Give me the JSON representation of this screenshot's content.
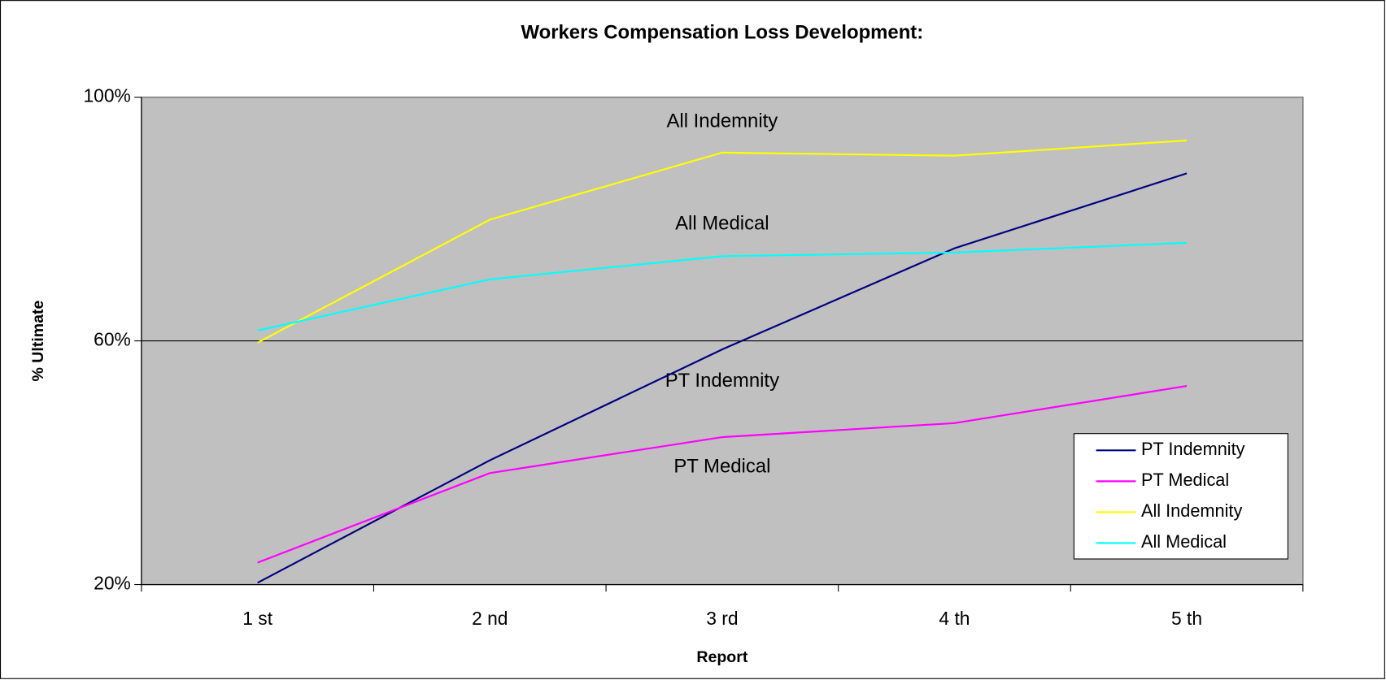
{
  "chart_data": {
    "type": "line",
    "title": "Workers Compensation Loss Development:",
    "x_label": "Report",
    "y_label": "% Ultimate",
    "categories": [
      "1 st",
      "2 nd",
      "3 rd",
      "4 th",
      "5 th"
    ],
    "series": [
      {
        "name": "PT Indemnity",
        "color": "#000080",
        "values": [
          20.3,
          40.4,
          58.6,
          75.2,
          87.5
        ]
      },
      {
        "name": "PT Medical",
        "color": "#ff00ff",
        "values": [
          23.6,
          38.3,
          44.2,
          46.5,
          52.6
        ]
      },
      {
        "name": "All Indemnity",
        "color": "#ffff00",
        "values": [
          59.7,
          79.9,
          90.9,
          90.4,
          92.9
        ]
      },
      {
        "name": "All Medical",
        "color": "#00ffff",
        "values": [
          61.7,
          70.1,
          73.9,
          74.5,
          76.1
        ]
      }
    ],
    "annotations": [
      "All Indemnity",
      "All Medical",
      "PT Indemnity",
      "PT Medical"
    ],
    "ylim": [
      20,
      100
    ],
    "yticks": [
      {
        "value": 20,
        "label": "20%"
      },
      {
        "value": 60,
        "label": "60%"
      },
      {
        "value": 100,
        "label": "100%"
      }
    ],
    "grid": true,
    "legend": "lower right",
    "plot_background": "#c0c0c0"
  }
}
